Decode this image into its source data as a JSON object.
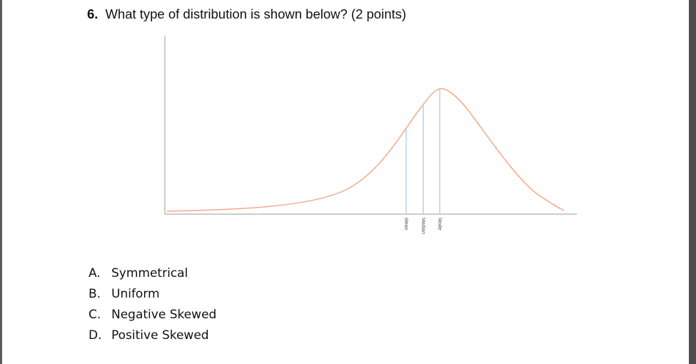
{
  "question": {
    "number": "6.",
    "text": "What type of distribution is shown below? (2 points)"
  },
  "chart_data": {
    "type": "line",
    "shape": "left-skewed distribution curve",
    "curve_color": "#f5a98a",
    "marker_color": "#9fc9df",
    "markers": [
      {
        "label": "Mean"
      },
      {
        "label": "Median"
      },
      {
        "label": "Mode"
      }
    ]
  },
  "options": [
    {
      "letter": "A.",
      "text": "Symmetrical"
    },
    {
      "letter": "B.",
      "text": "Uniform"
    },
    {
      "letter": "C.",
      "text": "Negative Skewed"
    },
    {
      "letter": "D.",
      "text": "Positive Skewed"
    }
  ]
}
